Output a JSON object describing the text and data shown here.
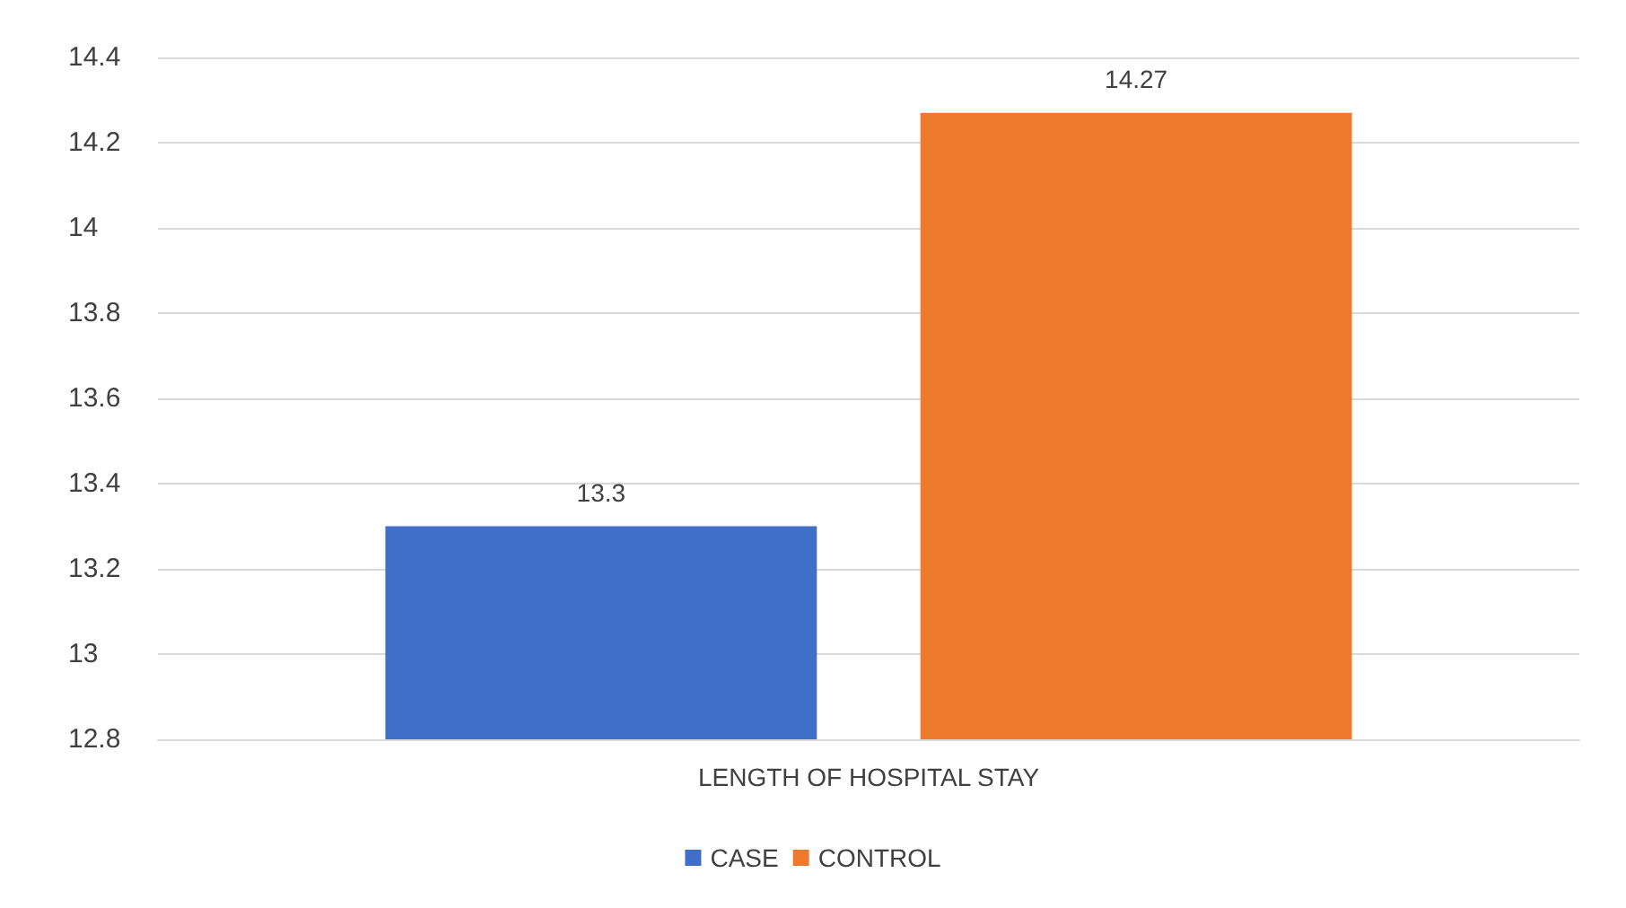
{
  "chart_data": {
    "type": "bar",
    "categories": [
      "LENGTH OF HOSPITAL STAY"
    ],
    "series": [
      {
        "name": "CASE",
        "color": "#3f6fc9",
        "values": [
          13.3
        ]
      },
      {
        "name": "CONTROL",
        "color": "#ee7a2e",
        "values": [
          14.27
        ]
      }
    ],
    "ylim": [
      12.8,
      14.4
    ],
    "yticks": [
      12.8,
      13,
      13.2,
      13.4,
      13.6,
      13.8,
      14,
      14.2,
      14.4
    ],
    "grid": "y",
    "legend": "bottom",
    "data_labels": true
  }
}
